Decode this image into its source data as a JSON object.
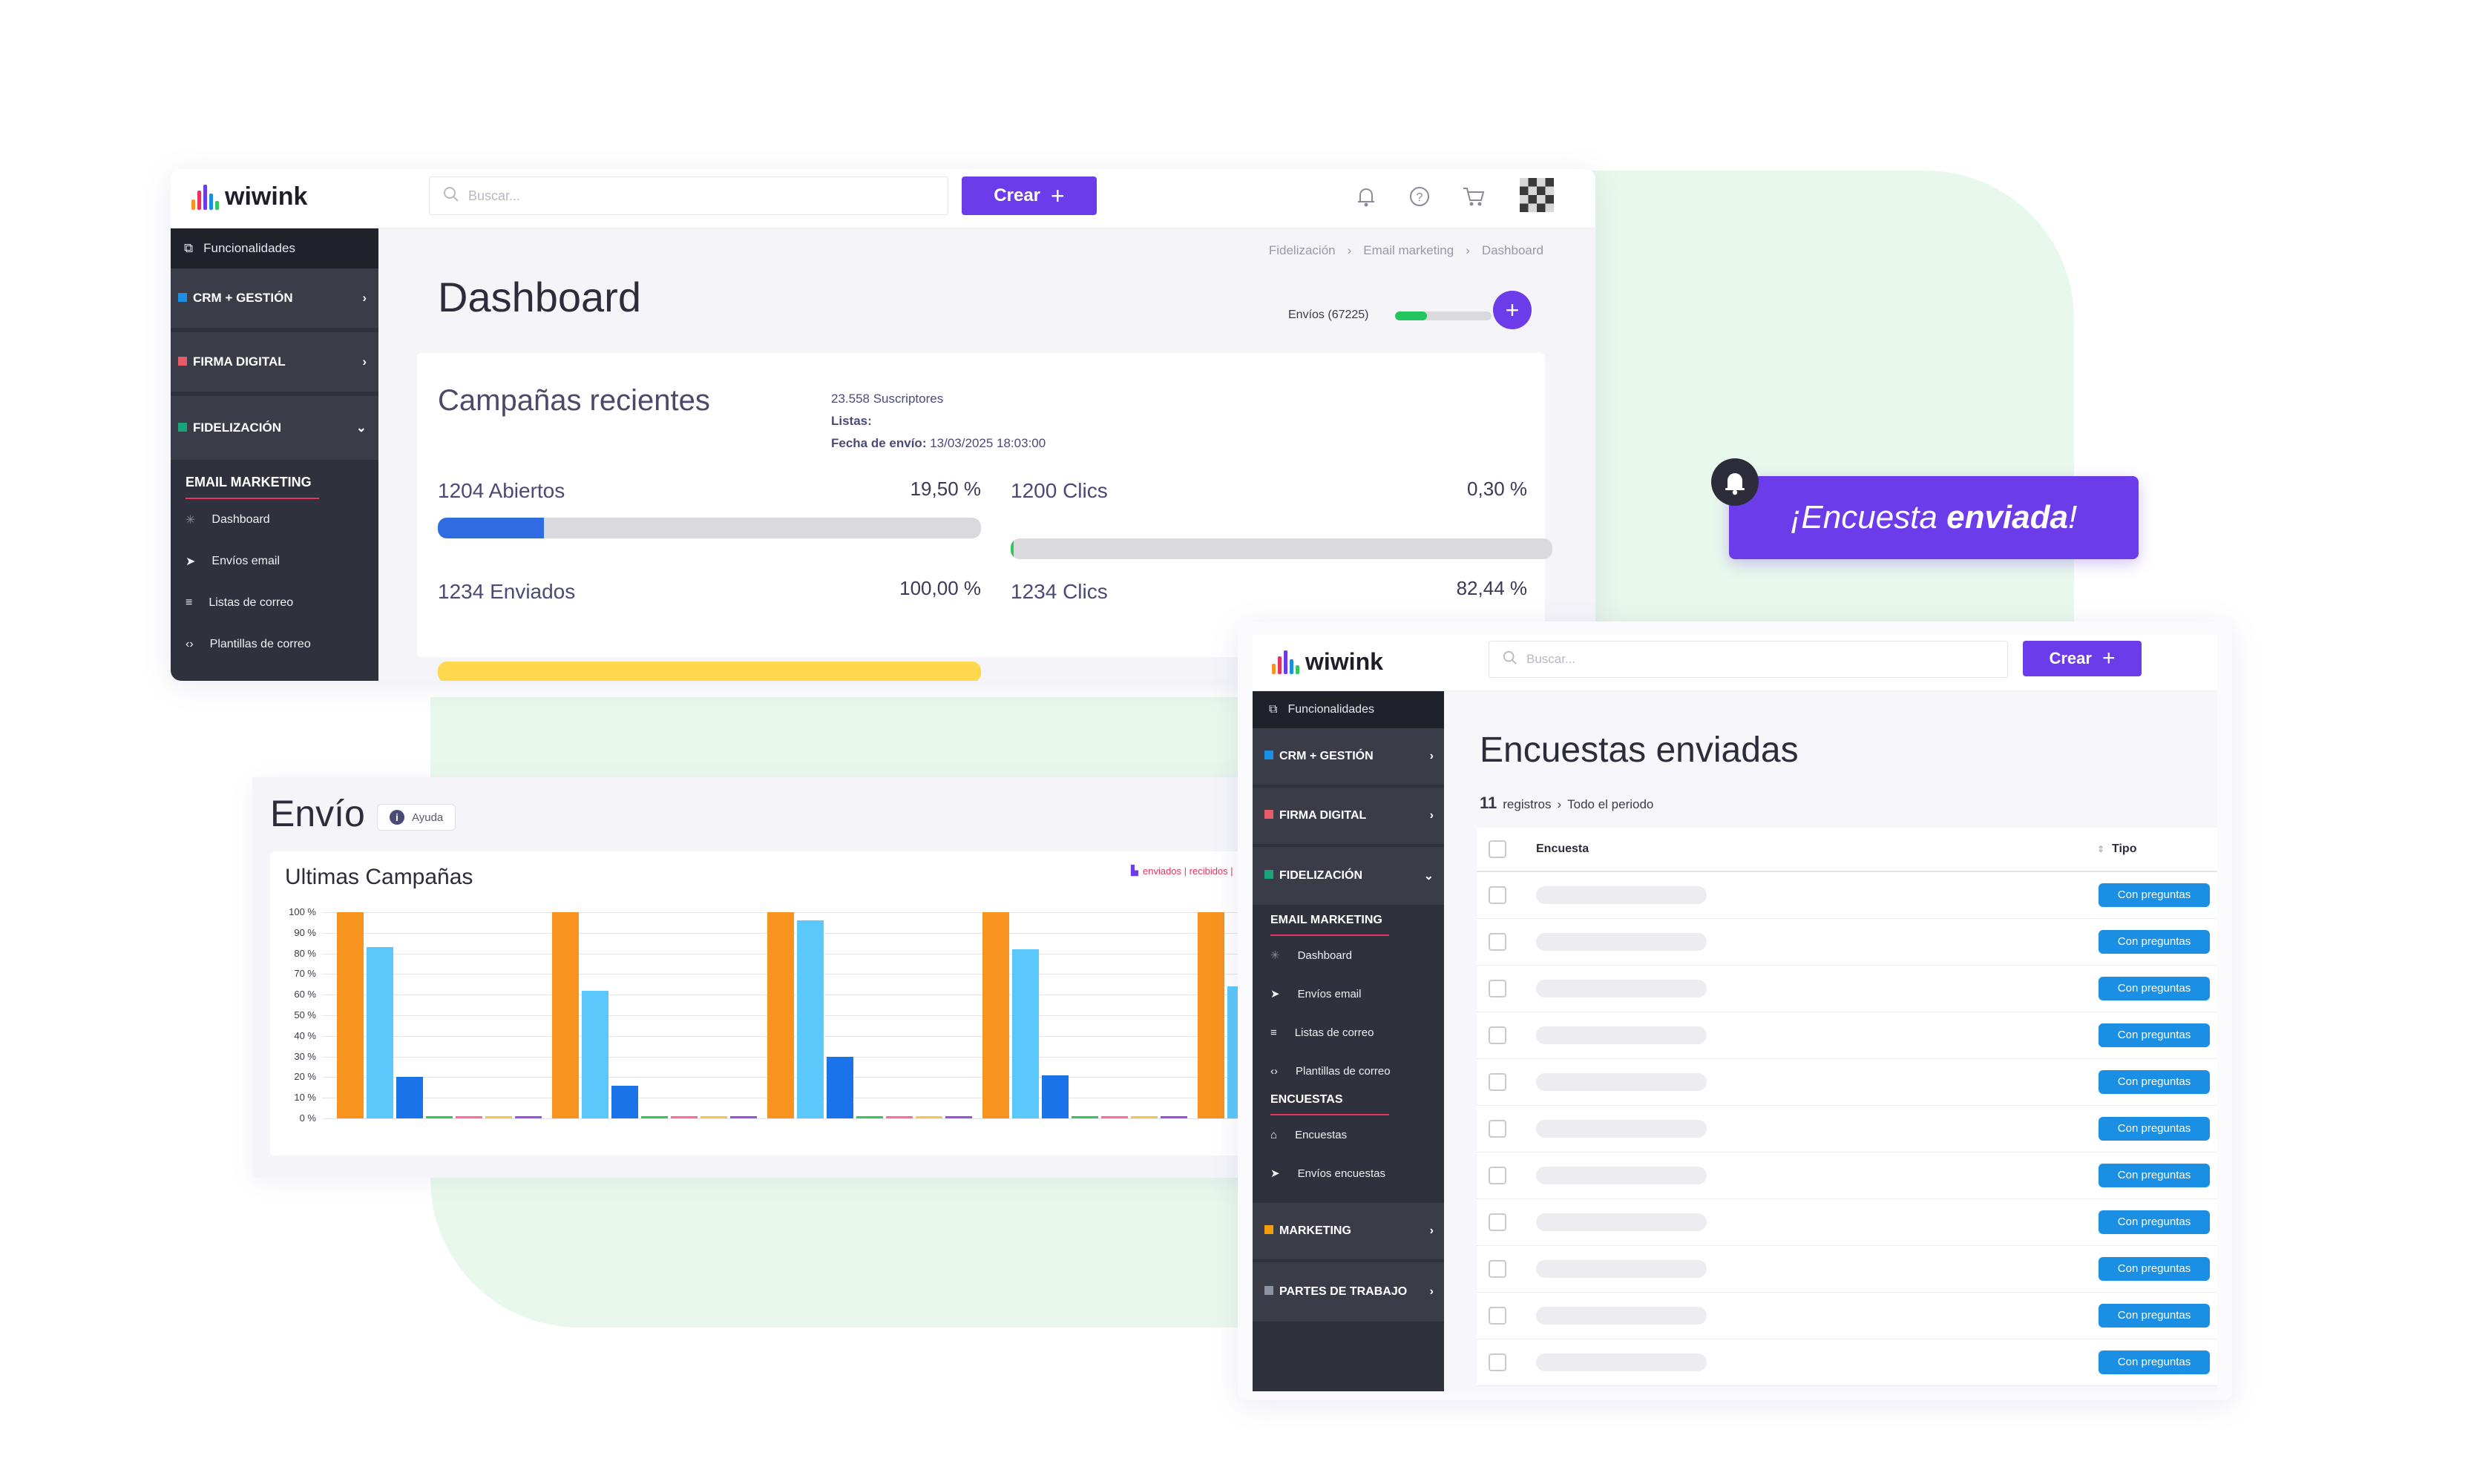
{
  "colors": {
    "accent": "#6c3bea",
    "crm": "#1a8fe3",
    "firma": "#e85b6a",
    "fidelizacion": "#1aa37a",
    "marketing": "#f59e0b",
    "partes": "#8e93a3",
    "abiertos": "#2f6be3",
    "enviados": "#ffd84d",
    "clics2": "#1a9be3",
    "envios_progress": "#22c55e"
  },
  "window1": {
    "logo": "wiwink",
    "search_placeholder": "Buscar...",
    "crear_label": "Crear",
    "sidebar": {
      "top": "Funcionalidades",
      "crm": "CRM + GESTIÓN",
      "firma": "FIRMA DIGITAL",
      "fidelizacion": "FIDELIZACIÓN",
      "email_marketing": "EMAIL MARKETING",
      "items": [
        "Dashboard",
        "Envíos email",
        "Listas de correo",
        "Plantillas de correo"
      ]
    },
    "breadcrumb": [
      "Fidelización",
      "Email marketing",
      "Dashboard"
    ],
    "page_title": "Dashboard",
    "envios_label": "Envíos (67225)",
    "envios_progress": 0.33,
    "campaign": {
      "title": "Campañas recientes",
      "suscriptores": "23.558 Suscriptores",
      "listas": "Listas:",
      "fecha_label": "Fecha de envío:",
      "fecha_value": "13/03/2025 18:03:00",
      "stats": [
        {
          "label": "1204 Abiertos",
          "pct": "19,50 %",
          "fill": 0.195
        },
        {
          "label": "1200 Clics",
          "pct": "0,30 %",
          "fill": 0.003
        },
        {
          "label": "1234 Enviados",
          "pct": "100,00 %",
          "fill": 1.0
        },
        {
          "label": "1234 Clics",
          "pct": "82,44 %",
          "fill": 0.8244
        }
      ]
    }
  },
  "window2": {
    "title": "Envío",
    "ayuda": "Ayuda",
    "chart_title": "Ultimas Campañas",
    "legend_text": "enviados | recibidos |"
  },
  "chart_data": {
    "type": "bar",
    "title": "Ultimas Campañas",
    "y_ticks": [
      "100 %",
      "90 %",
      "80 %",
      "70 %",
      "60 %",
      "50 %",
      "40 %",
      "30 %",
      "20 %",
      "10 %",
      "0 %"
    ],
    "ylim": [
      0,
      100
    ],
    "groups": [
      {
        "values": [
          100,
          83,
          20,
          1,
          1,
          1,
          1
        ]
      },
      {
        "values": [
          100,
          62,
          16,
          1,
          1,
          1,
          1
        ]
      },
      {
        "values": [
          100,
          96,
          30,
          1,
          1,
          1,
          1
        ]
      },
      {
        "values": [
          100,
          82,
          21,
          1,
          1,
          1,
          1
        ]
      },
      {
        "values": [
          100,
          64
        ]
      }
    ],
    "series_colors": [
      "#f8931f",
      "#5ac8fa",
      "#1a73e8",
      "#34c759",
      "#ff6b9a",
      "#f2c94c",
      "#9b51e0"
    ],
    "grid": true
  },
  "toast": {
    "prefix": "¡Encuesta ",
    "bold": "enviada",
    "suffix": "!"
  },
  "window3": {
    "logo": "wiwink",
    "search_placeholder": "Buscar...",
    "crear_label": "Crear",
    "sidebar": {
      "top": "Funcionalidades",
      "crm": "CRM + GESTIÓN",
      "firma": "FIRMA DIGITAL",
      "fidelizacion": "FIDELIZACIÓN",
      "email_marketing": "EMAIL MARKETING",
      "email_items": [
        "Dashboard",
        "Envíos email",
        "Listas de correo",
        "Plantillas de correo"
      ],
      "encuestas": "ENCUESTAS",
      "encuestas_items": [
        "Encuestas",
        "Envíos encuestas"
      ],
      "marketing": "MARKETING",
      "partes": "PARTES DE TRABAJO"
    },
    "page_title": "Encuestas enviadas",
    "registros_count": "11",
    "registros_label": "registros",
    "periodo": "Todo el periodo",
    "col_encuesta": "Encuesta",
    "col_tipo": "Tipo",
    "rows": [
      "Con preguntas",
      "Con preguntas",
      "Con preguntas",
      "Con preguntas",
      "Con preguntas",
      "Con preguntas",
      "Con preguntas",
      "Con preguntas",
      "Con preguntas",
      "Con preguntas",
      "Con preguntas"
    ]
  }
}
